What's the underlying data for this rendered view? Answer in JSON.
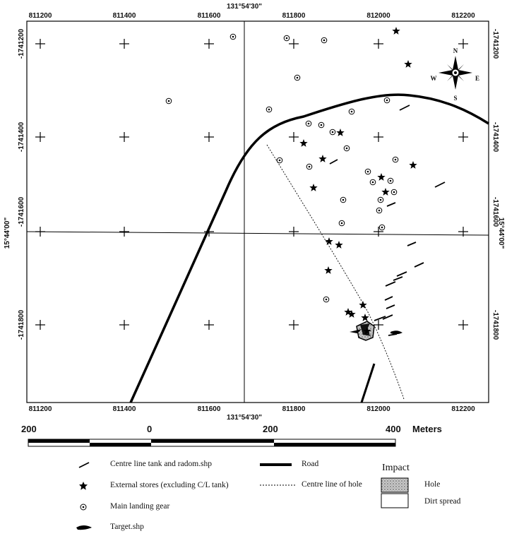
{
  "map": {
    "top_easting_labels": [
      "811200",
      "811400",
      "811600",
      "811800",
      "812000",
      "812200"
    ],
    "bottom_easting_labels": [
      "811200",
      "811400",
      "811600",
      "811800",
      "812000",
      "812200"
    ],
    "left_northing_labels": [
      "-1741200",
      "-1741400",
      "-1741600",
      "-1741800"
    ],
    "right_northing_labels": [
      "-1741200",
      "-1741400",
      "-1741600",
      "-1741800"
    ],
    "top_longitude_label": "131°54'30\"",
    "bottom_longitude_label": "131°54'30\"",
    "left_latitude_label": "15°44'00\"",
    "right_latitude_label": "15°44'00\"",
    "compass": {
      "n": "N",
      "s": "S",
      "e": "E",
      "w": "W"
    }
  },
  "scale_bar": {
    "labels": [
      "200",
      "0",
      "200",
      "400"
    ],
    "unit": "Meters"
  },
  "legend": {
    "centre_line_tank": "Centre line tank and radom.shp",
    "external_stores": "External stores (excluding C/L tank)",
    "main_landing_gear": "Main landing gear",
    "target": "Target.shp",
    "road": "Road",
    "centre_line_hole": "Centre line of hole",
    "impact_title": "Impact",
    "hole": "Hole",
    "dirt_spread": "Dirt spread"
  }
}
